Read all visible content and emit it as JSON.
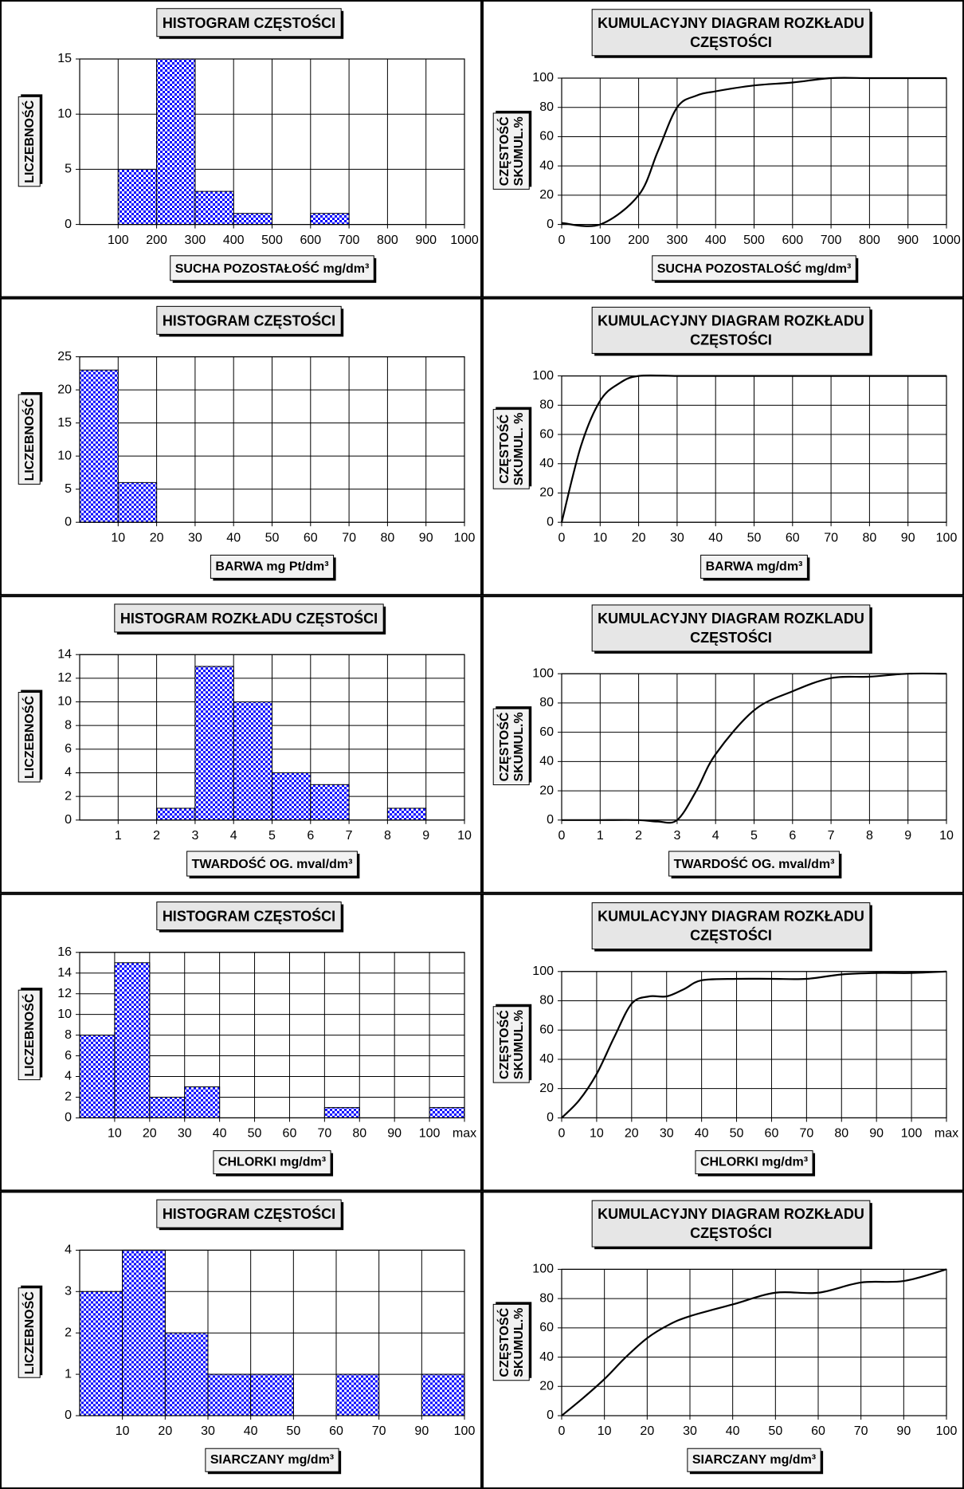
{
  "chart_data": [
    {
      "type": "histogram",
      "title": [
        "HISTOGRAM CZĘSTOŚCI"
      ],
      "x_label": "SUCHA POZOSTAŁOŚĆ mg/dm³",
      "y_label": [
        "LICZEBNOŚĆ"
      ],
      "bins": [
        0,
        100,
        200,
        300,
        400,
        500,
        600,
        700,
        800,
        900,
        1000
      ],
      "values": [
        0,
        5,
        15,
        3,
        1,
        0,
        1,
        0,
        0,
        0
      ],
      "color": "#0000ff",
      "xticks": [
        100,
        200,
        300,
        400,
        500,
        600,
        700,
        800,
        900,
        1000
      ],
      "ylim": [
        0,
        15
      ],
      "yticks": [
        0,
        5,
        10,
        15
      ],
      "grid": true
    },
    {
      "type": "line",
      "title": [
        "KUMULACYJNY DIAGRAM ROZKŁADU",
        "CZĘSTOŚCI"
      ],
      "x_label": "SUCHA POZOSTALOŚĆ mg/dm³",
      "y_label": [
        "CZĘSTOŚĆ",
        "SKUMUL.%"
      ],
      "x": [
        0,
        100,
        200,
        250,
        300,
        350,
        400,
        500,
        600,
        700,
        800,
        900,
        1000
      ],
      "values": [
        1,
        0,
        20,
        50,
        80,
        88,
        91,
        95,
        97,
        100,
        100,
        100,
        100
      ],
      "color": "#000000",
      "xlim": [
        0,
        1000
      ],
      "xticks": [
        0,
        100,
        200,
        300,
        400,
        500,
        600,
        700,
        800,
        900,
        1000
      ],
      "ylim": [
        0,
        100
      ],
      "yticks": [
        0,
        20,
        40,
        60,
        80,
        100
      ],
      "grid": true
    },
    {
      "type": "histogram",
      "title": [
        "HISTOGRAM CZĘSTOŚCI"
      ],
      "x_label": "BARWA mg Pt/dm³",
      "y_label": [
        "LICZEBNOŚĆ"
      ],
      "bins": [
        0,
        10,
        20,
        30,
        40,
        50,
        60,
        70,
        80,
        90,
        100
      ],
      "values": [
        23,
        6,
        0,
        0,
        0,
        0,
        0,
        0,
        0,
        0
      ],
      "color": "#0000ff",
      "xticks": [
        10,
        20,
        30,
        40,
        50,
        60,
        70,
        80,
        90,
        100
      ],
      "ylim": [
        0,
        25
      ],
      "yticks": [
        0,
        5,
        10,
        15,
        20,
        25
      ],
      "grid": true
    },
    {
      "type": "line",
      "title": [
        "KUMULACYJNY DIAGRAM ROZKŁADU",
        "CZĘSTOŚCI"
      ],
      "x_label": "BARWA mg/dm³",
      "y_label": [
        "CZĘSTOŚĆ",
        "SKUMUL. %"
      ],
      "x": [
        0,
        5,
        10,
        15,
        20,
        30,
        40,
        50,
        60,
        70,
        80,
        90,
        100
      ],
      "values": [
        0,
        52,
        83,
        95,
        100,
        100,
        100,
        100,
        100,
        100,
        100,
        100,
        100
      ],
      "color": "#000000",
      "xlim": [
        0,
        100
      ],
      "xticks": [
        0,
        10,
        20,
        30,
        40,
        50,
        60,
        70,
        80,
        90,
        100
      ],
      "ylim": [
        0,
        100
      ],
      "yticks": [
        0,
        20,
        40,
        60,
        80,
        100
      ],
      "grid": true
    },
    {
      "type": "histogram",
      "title": [
        "HISTOGRAM ROZKŁADU CZĘSTOŚCI"
      ],
      "x_label": "TWARDOŚĆ OG. mval/dm³",
      "y_label": [
        "LICZEBNOŚĆ"
      ],
      "bins": [
        0,
        1,
        2,
        3,
        4,
        5,
        6,
        7,
        8,
        9,
        10
      ],
      "values": [
        0,
        0,
        1,
        13,
        10,
        4,
        3,
        0,
        1,
        0
      ],
      "color": "#0000ff",
      "xticks": [
        1,
        2,
        3,
        4,
        5,
        6,
        7,
        8,
        9,
        10
      ],
      "ylim": [
        0,
        14
      ],
      "yticks": [
        0,
        2,
        4,
        6,
        8,
        10,
        12,
        14
      ],
      "grid": true
    },
    {
      "type": "line",
      "title": [
        "KUMULACYJNY DIAGRAM ROZKLADU",
        "CZĘSTOŚCI"
      ],
      "x_label": "TWARDOŚĆ OG. mval/dm³",
      "y_label": [
        "CZĘSTOŚĆ",
        "SKUMUL.%"
      ],
      "x": [
        0,
        1,
        2,
        2.5,
        3,
        3.5,
        4,
        5,
        6,
        7,
        8,
        9,
        10
      ],
      "values": [
        0,
        0,
        0,
        -1,
        0,
        20,
        45,
        75,
        88,
        97,
        98,
        100,
        100
      ],
      "color": "#000000",
      "xlim": [
        0,
        10
      ],
      "xticks": [
        0,
        1,
        2,
        3,
        4,
        5,
        6,
        7,
        8,
        9,
        10
      ],
      "ylim": [
        0,
        100
      ],
      "yticks": [
        0,
        20,
        40,
        60,
        80,
        100
      ],
      "grid": true
    },
    {
      "type": "histogram",
      "title": [
        "HISTOGRAM CZĘSTOŚCI"
      ],
      "x_label": "CHLORKI mg/dm³",
      "y_label": [
        "LICZEBNOŚĆ"
      ],
      "bins": [
        0,
        10,
        20,
        30,
        40,
        50,
        60,
        70,
        80,
        90,
        100,
        110
      ],
      "values": [
        8,
        15,
        2,
        3,
        0,
        0,
        0,
        1,
        0,
        0,
        1
      ],
      "color": "#0000ff",
      "xticks": [
        10,
        20,
        30,
        40,
        50,
        60,
        70,
        80,
        90,
        100,
        {
          "value": 110,
          "label": "max"
        }
      ],
      "ylim": [
        0,
        16
      ],
      "yticks": [
        0,
        2,
        4,
        6,
        8,
        10,
        12,
        14,
        16
      ],
      "grid": true
    },
    {
      "type": "line",
      "title": [
        "KUMULACYJNY DIAGRAM ROZKŁADU",
        "CZĘSTOŚCI"
      ],
      "x_label": "CHLORKI mg/dm³",
      "y_label": [
        "CZĘSTOŚĆ",
        "SKUMUL.%"
      ],
      "x": [
        0,
        5,
        10,
        15,
        20,
        25,
        30,
        35,
        40,
        50,
        60,
        70,
        80,
        90,
        100,
        110
      ],
      "values": [
        0,
        12,
        30,
        55,
        78,
        83,
        83,
        88,
        94,
        95,
        95,
        95,
        98,
        99,
        99,
        100
      ],
      "color": "#000000",
      "xlim": [
        0,
        110
      ],
      "xticks": [
        0,
        10,
        20,
        30,
        40,
        50,
        60,
        70,
        80,
        90,
        100,
        {
          "value": 110,
          "label": "max"
        }
      ],
      "ylim": [
        0,
        100
      ],
      "yticks": [
        0,
        20,
        40,
        60,
        80,
        100
      ],
      "grid": true
    },
    {
      "type": "histogram",
      "title": [
        "HISTOGRAM CZĘSTOŚCI"
      ],
      "x_label": "SIARCZANY mg/dm³",
      "y_label": [
        "LICZEBNOŚĆ"
      ],
      "bins": [
        0,
        10,
        20,
        30,
        40,
        50,
        60,
        70,
        90,
        100
      ],
      "values": [
        3,
        4,
        2,
        1,
        1,
        0,
        1,
        0,
        1
      ],
      "color": "#0000ff",
      "xticks": [
        10,
        20,
        30,
        40,
        50,
        60,
        70,
        90,
        100
      ],
      "ylim": [
        0,
        4
      ],
      "yticks": [
        0,
        1,
        2,
        3,
        4
      ],
      "grid": true
    },
    {
      "type": "line",
      "title": [
        "KUMULACYJNY DIAGRAM ROZKŁADU",
        "CZĘSTOŚCI"
      ],
      "x_label": "SIARCZANY mg/dm³",
      "y_label": [
        "CZĘSTOŚĆ",
        "SKUMUL.%"
      ],
      "x": [
        0,
        5,
        10,
        15,
        20,
        25,
        30,
        40,
        50,
        60,
        70,
        90,
        100
      ],
      "values": [
        0,
        12,
        25,
        40,
        53,
        62,
        68,
        76,
        84,
        84,
        91,
        92,
        100
      ],
      "color": "#000000",
      "xlim": [
        0,
        100
      ],
      "xticks": [
        0,
        10,
        20,
        30,
        40,
        50,
        60,
        70,
        90,
        100
      ],
      "ylim": [
        0,
        100
      ],
      "yticks": [
        0,
        20,
        40,
        60,
        80,
        100
      ],
      "grid": true
    }
  ]
}
